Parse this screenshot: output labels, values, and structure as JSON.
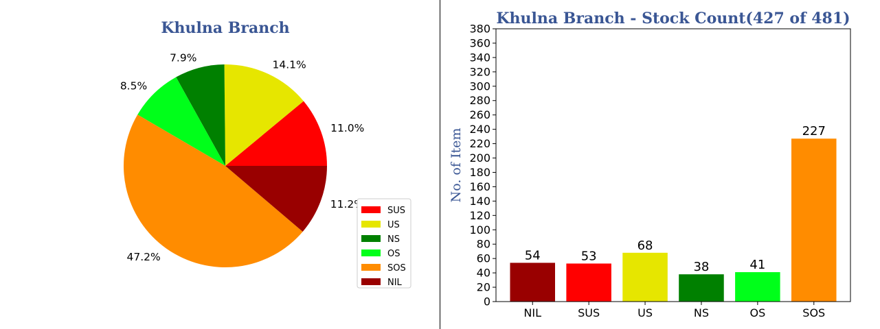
{
  "colors": {
    "title": "#3a5694"
  },
  "chart_data": [
    {
      "type": "pie",
      "title": "Khulna Branch",
      "slices": [
        {
          "label": "SUS",
          "value": 53,
          "percent_label": "11.0%",
          "color": "#ff0000"
        },
        {
          "label": "US",
          "value": 68,
          "percent_label": "14.1%",
          "color": "#e6e600"
        },
        {
          "label": "NS",
          "value": 38,
          "percent_label": "7.9%",
          "color": "#008000"
        },
        {
          "label": "OS",
          "value": 41,
          "percent_label": "8.5%",
          "color": "#00ff1a"
        },
        {
          "label": "SOS",
          "value": 227,
          "percent_label": "47.2%",
          "color": "#ff8c00"
        },
        {
          "label": "NIL",
          "value": 54,
          "percent_label": "11.2%",
          "color": "#990000"
        }
      ],
      "legend_position": "lower-right"
    },
    {
      "type": "bar",
      "title": "Khulna Branch - Stock Count(427 of 481)",
      "ylabel": "No. of Item",
      "xlabel": "",
      "categories": [
        "NIL",
        "SUS",
        "US",
        "NS",
        "OS",
        "SOS"
      ],
      "values": [
        54,
        53,
        68,
        38,
        41,
        227
      ],
      "colors": [
        "#990000",
        "#ff0000",
        "#e6e600",
        "#008000",
        "#00ff1a",
        "#ff8c00"
      ],
      "ylim": [
        0,
        380
      ],
      "yticks": [
        0,
        20,
        40,
        60,
        80,
        100,
        120,
        140,
        160,
        180,
        200,
        220,
        240,
        260,
        280,
        300,
        320,
        340,
        360,
        380
      ],
      "grid": false
    }
  ]
}
